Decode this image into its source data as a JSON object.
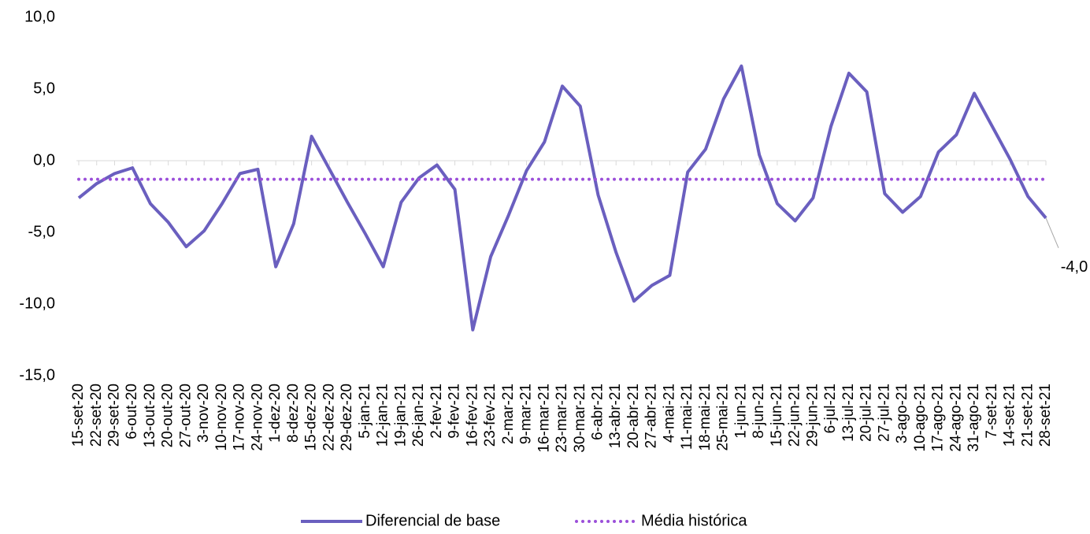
{
  "chart_data": {
    "type": "line",
    "categories": [
      "15-set-20",
      "22-set-20",
      "29-set-20",
      "6-out-20",
      "13-out-20",
      "20-out-20",
      "27-out-20",
      "3-nov-20",
      "10-nov-20",
      "17-nov-20",
      "24-nov-20",
      "1-dez-20",
      "8-dez-20",
      "15-dez-20",
      "22-dez-20",
      "29-dez-20",
      "5-jan-21",
      "12-jan-21",
      "19-jan-21",
      "26-jan-21",
      "2-fev-21",
      "9-fev-21",
      "16-fev-21",
      "23-fev-21",
      "2-mar-21",
      "9-mar-21",
      "16-mar-21",
      "23-mar-21",
      "30-mar-21",
      "6-abr-21",
      "13-abr-21",
      "20-abr-21",
      "27-abr-21",
      "4-mai-21",
      "11-mai-21",
      "18-mai-21",
      "25-mai-21",
      "1-jun-21",
      "8-jun-21",
      "15-jun-21",
      "22-jun-21",
      "29-jun-21",
      "6-jul-21",
      "13-jul-21",
      "20-jul-21",
      "27-jul-21",
      "3-ago-21",
      "10-ago-21",
      "17-ago-21",
      "24-ago-21",
      "31-ago-21",
      "7-set-21",
      "14-set-21",
      "21-set-21",
      "28-set-21"
    ],
    "series": [
      {
        "name": "Diferencial de base",
        "color": "#6a5fbf",
        "style": "solid",
        "values": [
          -2.6,
          -1.6,
          -0.9,
          -0.5,
          -3.0,
          -4.3,
          -6.0,
          -4.9,
          -3.0,
          -0.9,
          -0.6,
          -7.4,
          -4.4,
          1.7,
          -0.6,
          -2.9,
          -5.1,
          -7.4,
          -2.9,
          -1.2,
          -0.3,
          -2.0,
          -11.8,
          -6.7,
          -3.8,
          -0.7,
          1.3,
          5.2,
          3.8,
          -2.4,
          -6.4,
          -9.8,
          -8.7,
          -8.0,
          -0.8,
          0.8,
          4.3,
          6.6,
          0.4,
          -3.0,
          -4.2,
          -2.6,
          2.4,
          6.1,
          4.8,
          -2.3,
          -3.6,
          -2.5,
          0.6,
          1.8,
          4.7,
          2.4,
          0.1,
          -2.5,
          -4.0
        ],
        "value_labels": [
          null,
          null,
          null,
          null,
          null,
          null,
          null,
          null,
          null,
          null,
          null,
          null,
          null,
          null,
          null,
          null,
          null,
          null,
          null,
          null,
          null,
          null,
          null,
          null,
          null,
          null,
          null,
          null,
          null,
          null,
          null,
          null,
          null,
          null,
          null,
          null,
          null,
          null,
          null,
          null,
          null,
          null,
          null,
          null,
          null,
          null,
          null,
          null,
          null,
          null,
          null,
          null,
          null,
          null,
          "-4,0"
        ]
      },
      {
        "name": "Média histórica",
        "color": "#9b4fd9",
        "style": "dotted",
        "value": -1.3
      }
    ],
    "ylim": [
      -15,
      10
    ],
    "yticks": [
      {
        "value": -15,
        "label": "-15,0"
      },
      {
        "value": -10,
        "label": "-10,0"
      },
      {
        "value": -5,
        "label": "-5,0"
      },
      {
        "value": 0,
        "label": "0,0"
      },
      {
        "value": 5,
        "label": "5,0"
      },
      {
        "value": 10,
        "label": "10,0"
      }
    ],
    "grid": false,
    "legend": "bottom"
  }
}
